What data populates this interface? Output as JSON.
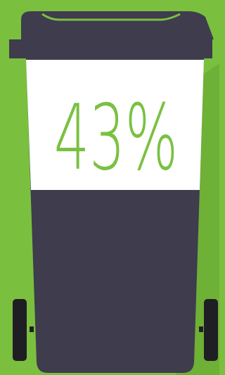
{
  "headline": {
    "text": "43%"
  }
}
